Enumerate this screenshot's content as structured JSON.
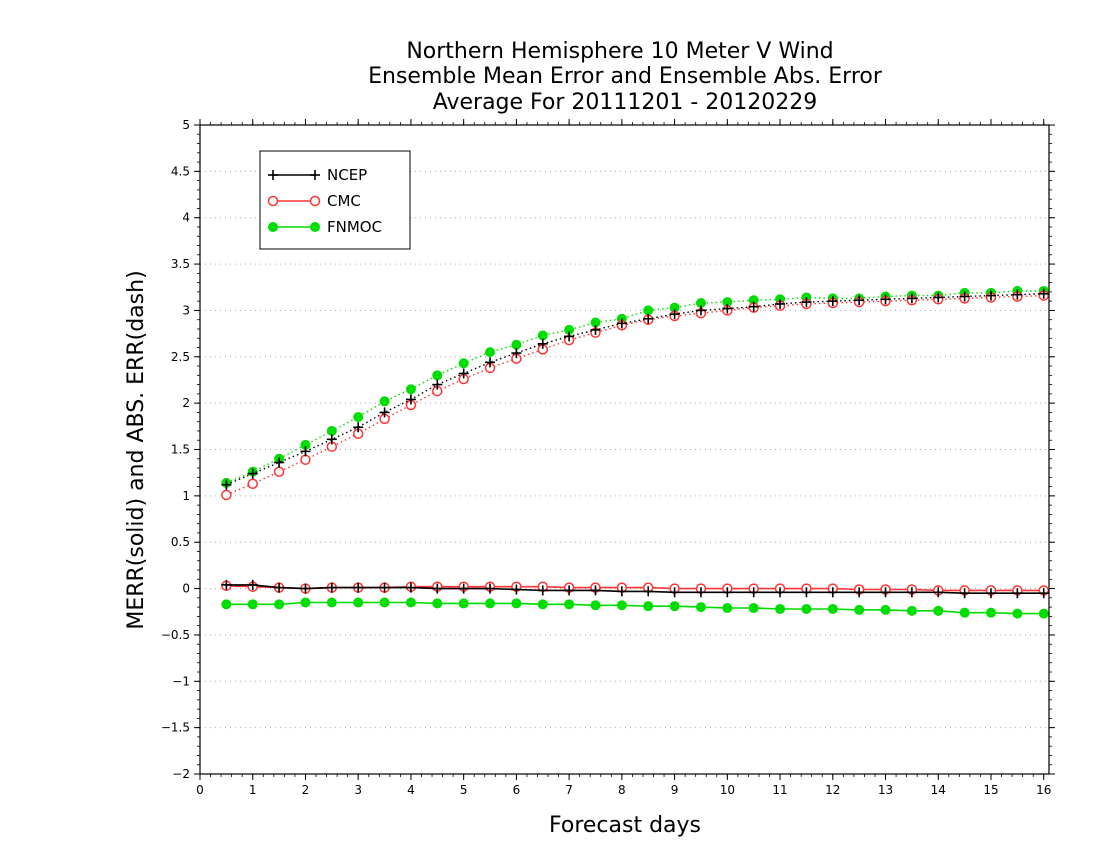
{
  "chart_data": {
    "type": "line",
    "title_lines": [
      "Northern Hemisphere 10 Meter V Wind",
      "Ensemble Mean Error and Ensemble Abs. Error",
      "Average For 20111201 - 20120229"
    ],
    "xlabel": "Forecast days",
    "ylabel": "MERR(solid) and ABS. ERR(dash)",
    "xlim": [
      0,
      16.1
    ],
    "ylim": [
      -2,
      5
    ],
    "xticks": [
      "0",
      "1",
      "2",
      "3",
      "4",
      "5",
      "6",
      "7",
      "8",
      "9",
      "10",
      "11",
      "12",
      "13",
      "14",
      "15",
      "16"
    ],
    "yticks": [
      "5",
      "4.5",
      "4",
      "3.5",
      "3",
      "2.5",
      "2",
      "1.5",
      "1",
      "0.5",
      "0",
      "−0.5",
      "−1",
      "−1.5",
      "−2"
    ],
    "grid": true,
    "legend_position": "top-left",
    "x": [
      0.5,
      1,
      1.5,
      2,
      2.5,
      3,
      3.5,
      4,
      4.5,
      5,
      5.5,
      6,
      6.5,
      7,
      7.5,
      8,
      8.5,
      9,
      9.5,
      10,
      10.5,
      11,
      11.5,
      12,
      12.5,
      13,
      13.5,
      14,
      14.5,
      15,
      15.5,
      16
    ],
    "series": [
      {
        "name": "NCEP",
        "color": "#000000",
        "marker": "plus",
        "merr": [
          0.04,
          0.04,
          0.01,
          0.0,
          0.01,
          0.01,
          0.01,
          0.01,
          0.0,
          0.0,
          0.0,
          -0.01,
          -0.02,
          -0.02,
          -0.02,
          -0.03,
          -0.03,
          -0.04,
          -0.04,
          -0.04,
          -0.04,
          -0.04,
          -0.04,
          -0.04,
          -0.04,
          -0.04,
          -0.04,
          -0.04,
          -0.05,
          -0.05,
          -0.05,
          -0.05
        ],
        "abs_err": [
          1.12,
          1.24,
          1.36,
          1.48,
          1.61,
          1.74,
          1.9,
          2.04,
          2.2,
          2.32,
          2.44,
          2.54,
          2.64,
          2.72,
          2.79,
          2.86,
          2.91,
          2.96,
          3.0,
          3.02,
          3.04,
          3.07,
          3.09,
          3.1,
          3.11,
          3.12,
          3.13,
          3.14,
          3.15,
          3.16,
          3.17,
          3.18
        ]
      },
      {
        "name": "CMC",
        "color": "#ff3333",
        "marker": "open-circle",
        "merr": [
          0.03,
          0.02,
          0.01,
          0.0,
          0.01,
          0.01,
          0.01,
          0.02,
          0.02,
          0.02,
          0.02,
          0.02,
          0.02,
          0.01,
          0.01,
          0.01,
          0.01,
          0.0,
          0.0,
          0.0,
          0.0,
          0.0,
          0.0,
          0.0,
          -0.01,
          -0.01,
          -0.01,
          -0.02,
          -0.02,
          -0.02,
          -0.02,
          -0.02
        ],
        "abs_err": [
          1.01,
          1.13,
          1.26,
          1.39,
          1.53,
          1.67,
          1.83,
          1.98,
          2.13,
          2.26,
          2.38,
          2.48,
          2.58,
          2.68,
          2.76,
          2.84,
          2.9,
          2.94,
          2.97,
          3.0,
          3.03,
          3.05,
          3.07,
          3.08,
          3.09,
          3.1,
          3.11,
          3.12,
          3.13,
          3.14,
          3.15,
          3.16
        ]
      },
      {
        "name": "FNMOC",
        "color": "#00dd00",
        "marker": "filled-circle",
        "merr": [
          -0.17,
          -0.17,
          -0.17,
          -0.15,
          -0.15,
          -0.15,
          -0.15,
          -0.15,
          -0.16,
          -0.16,
          -0.16,
          -0.16,
          -0.17,
          -0.17,
          -0.18,
          -0.18,
          -0.19,
          -0.19,
          -0.2,
          -0.21,
          -0.21,
          -0.22,
          -0.22,
          -0.22,
          -0.23,
          -0.23,
          -0.24,
          -0.24,
          -0.26,
          -0.26,
          -0.27,
          -0.27
        ],
        "abs_err": [
          1.14,
          1.26,
          1.4,
          1.55,
          1.7,
          1.85,
          2.02,
          2.15,
          2.3,
          2.43,
          2.55,
          2.63,
          2.73,
          2.79,
          2.87,
          2.91,
          3.0,
          3.03,
          3.08,
          3.09,
          3.11,
          3.12,
          3.14,
          3.13,
          3.13,
          3.15,
          3.16,
          3.16,
          3.19,
          3.19,
          3.21,
          3.21
        ]
      }
    ]
  }
}
